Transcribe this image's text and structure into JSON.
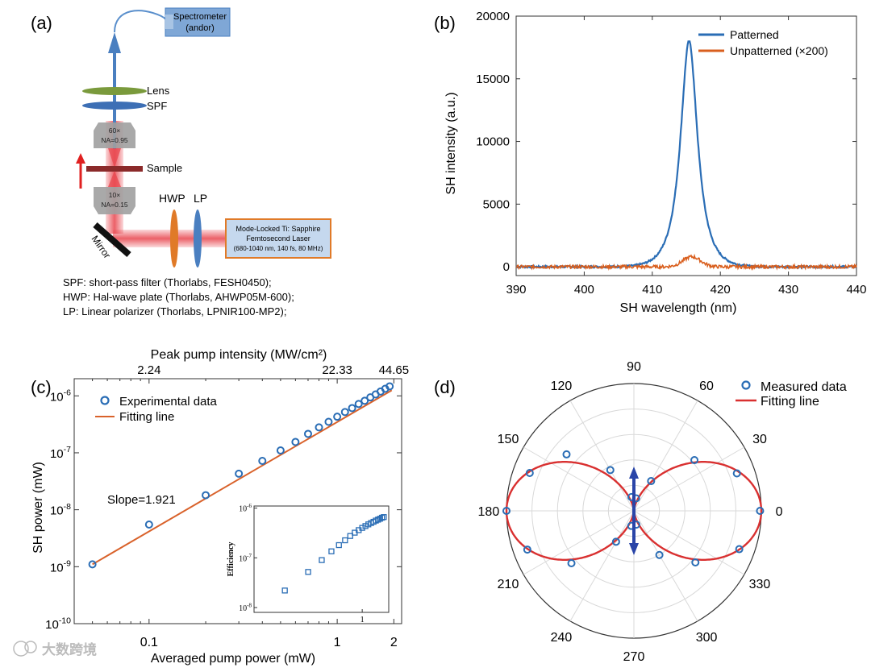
{
  "panels": {
    "a": {
      "label": "(a)"
    },
    "b": {
      "label": "(b)"
    },
    "c": {
      "label": "(c)"
    },
    "d": {
      "label": "(d)"
    }
  },
  "setup": {
    "spectrometer": [
      "Spectrometer",
      "(andor)"
    ],
    "lens": "Lens",
    "spf": "SPF",
    "objective_top": [
      "60×",
      "NA=0.95"
    ],
    "sample": "Sample",
    "objective_bottom": [
      "10×",
      "NA=0.15"
    ],
    "hwp": "HWP",
    "lp": "LP",
    "mirror": "Mirror",
    "laser": [
      "Mode-Locked Ti: Sapphire",
      "Femtosecond Laser",
      "(680-1040 nm, 140 fs, 80 MHz)"
    ],
    "notes": [
      "SPF: short-pass filter (Thorlabs, FESH0450);",
      "HWP: Hal-wave plate (Thorlabs, AHWP05M-600);",
      "LP: Linear polarizer (Thorlabs, LPNIR100-MP2);"
    ],
    "colors": {
      "beam": "#e8454d",
      "lens": "#7a9a3c",
      "spf": "#3d6fb5",
      "hwp": "#e07a28",
      "lp": "#4a7fc0",
      "laser_border": "#e07a28",
      "laser_fill": "#c5d8ee",
      "spec_fill": "#7fa7d6"
    }
  },
  "watermark": "大数跨境",
  "chart_data": [
    {
      "id": "b",
      "type": "line",
      "xlabel": "SH wavelength (nm)",
      "ylabel": "SH intensity (a.u.)",
      "xlim": [
        390,
        440
      ],
      "ylim": [
        -700,
        20000
      ],
      "xticks": [
        390,
        400,
        410,
        420,
        430,
        440
      ],
      "yticks": [
        0,
        5000,
        10000,
        15000,
        20000
      ],
      "legend_position": "top-right",
      "series": [
        {
          "name": "Patterned",
          "color": "#2a6db5",
          "peak_center": 415.4,
          "peak_height": 18000,
          "peak_width": 1.35
        },
        {
          "name": "Unpatterned (×200)",
          "color": "#d95f1e",
          "peak_center": 415.8,
          "peak_height": 800,
          "peak_width": 1.3
        }
      ]
    },
    {
      "id": "c",
      "type": "scatter",
      "xscale": "log",
      "yscale": "log",
      "xlabel": "Averaged pump power (mW)",
      "ylabel": "SH power (mW)",
      "top_xlabel": "Peak pump intensity (MW/cm²)",
      "top_ticks": [
        {
          "x": 0.1,
          "label": "2.24"
        },
        {
          "x": 1.0,
          "label": "22.33"
        },
        {
          "x": 2.0,
          "label": "44.65"
        }
      ],
      "xlim": [
        0.04,
        2.2
      ],
      "ylim": [
        1e-10,
        2e-06
      ],
      "xticks": [
        {
          "v": 0.1,
          "label": "0.1"
        },
        {
          "v": 1,
          "label": "1"
        },
        {
          "v": 2,
          "label": "2"
        }
      ],
      "yticks": [
        {
          "v": 1e-10,
          "b": "10",
          "e": "-10"
        },
        {
          "v": 1e-09,
          "b": "10",
          "e": "-9"
        },
        {
          "v": 1e-08,
          "b": "10",
          "e": "-8"
        },
        {
          "v": 1e-07,
          "b": "10",
          "e": "-7"
        },
        {
          "v": 1e-06,
          "b": "10",
          "e": "-6"
        }
      ],
      "annotation": "Slope=1.921",
      "series": [
        {
          "name": "Experimental data",
          "color": "#2a6db5",
          "x": [
            0.05,
            0.1,
            0.2,
            0.3,
            0.4,
            0.5,
            0.6,
            0.7,
            0.8,
            0.9,
            1.0,
            1.1,
            1.2,
            1.3,
            1.4,
            1.5,
            1.6,
            1.7,
            1.8,
            1.9
          ],
          "y": [
            1.1e-09,
            5.5e-09,
            1.8e-08,
            4.3e-08,
            7.2e-08,
            1.1e-07,
            1.55e-07,
            2.15e-07,
            2.8e-07,
            3.5e-07,
            4.3e-07,
            5.2e-07,
            6.1e-07,
            7.2e-07,
            8.2e-07,
            9.4e-07,
            1.06e-06,
            1.19e-06,
            1.33e-06,
            1.47e-06
          ]
        },
        {
          "name": "Fitting line",
          "color": "#d9622b",
          "slope": 1.921,
          "x0": 0.05,
          "y0": 1.1e-09,
          "x_end": 1.95
        }
      ],
      "inset": {
        "ylabel": "Efficiency",
        "xtick": "1",
        "yticks": [
          {
            "v": 1e-08,
            "b": "10",
            "e": "-8"
          },
          {
            "v": 1e-07,
            "b": "10",
            "e": "-7"
          },
          {
            "v": 1e-06,
            "b": "10",
            "e": "-6"
          }
        ],
        "xlim": [
          0.04,
          2.2
        ],
        "ylim": [
          8e-09,
          1.1e-06
        ],
        "x": [
          0.1,
          0.2,
          0.3,
          0.4,
          0.5,
          0.6,
          0.7,
          0.8,
          0.9,
          1.0,
          1.1,
          1.2,
          1.3,
          1.4,
          1.5,
          1.6,
          1.7,
          1.8,
          1.9
        ],
        "y": [
          2.2e-08,
          5.2e-08,
          9e-08,
          1.35e-07,
          1.8e-07,
          2.25e-07,
          2.75e-07,
          3.2e-07,
          3.6e-07,
          4e-07,
          4.35e-07,
          4.7e-07,
          5e-07,
          5.3e-07,
          5.6e-07,
          5.85e-07,
          6.1e-07,
          6.4e-07,
          6.6e-07
        ]
      }
    },
    {
      "id": "d",
      "type": "polar",
      "angle_labels": [
        "0",
        "30",
        "60",
        "90",
        "120",
        "150",
        "180",
        "210",
        "240",
        "270",
        "300",
        "330"
      ],
      "rmax": 1.0,
      "rings": [
        0.2,
        0.4,
        0.6,
        0.8,
        1.0
      ],
      "legend_position": "top-right",
      "arrow_color": "#2a45a8",
      "series": [
        {
          "name": "Measured data",
          "color": "#2a6db5",
          "theta": [
            0,
            20,
            40,
            60,
            80,
            100,
            120,
            140,
            160,
            180,
            200,
            220,
            240,
            260,
            280,
            300,
            320,
            340
          ],
          "r": [
            0.99,
            0.86,
            0.62,
            0.27,
            0.1,
            0.11,
            0.37,
            0.69,
            0.87,
            1.0,
            0.89,
            0.64,
            0.28,
            0.12,
            0.11,
            0.4,
            0.63,
            0.88
          ]
        },
        {
          "name": "Fitting line",
          "color": "#d93030",
          "model": "cos^2",
          "amplitude": 1.0
        }
      ]
    }
  ]
}
